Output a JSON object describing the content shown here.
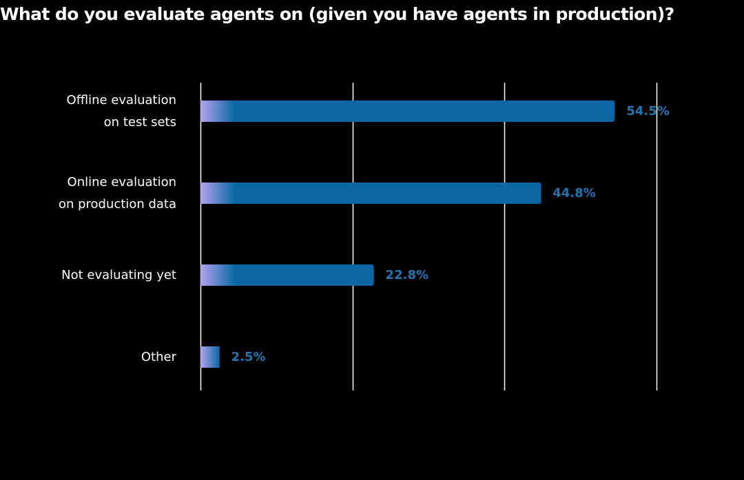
{
  "chart_data": {
    "type": "bar",
    "orientation": "horizontal",
    "title": "What do you evaluate agents on (given you have agents in production)?",
    "categories": [
      [
        "Offline evaluation",
        "on test sets"
      ],
      [
        "Online evaluation",
        "on production data"
      ],
      [
        "Not evaluating yet"
      ],
      [
        "Other"
      ]
    ],
    "values": [
      54.5,
      44.8,
      22.8,
      2.5
    ],
    "value_labels": [
      "54.5%",
      "44.8%",
      "22.8%",
      "2.5%"
    ],
    "xlim": [
      0,
      60
    ],
    "gridlines": [
      0,
      20,
      40,
      60
    ],
    "xlabel": "",
    "ylabel": "",
    "legend": "none"
  },
  "colors": {
    "background": "#000000",
    "bar": "#0a67a3",
    "bar_gradient_start": "#b4a3f0",
    "value_text": "#1f77b4",
    "grid": "#ffffff",
    "text": "#ffffff"
  }
}
